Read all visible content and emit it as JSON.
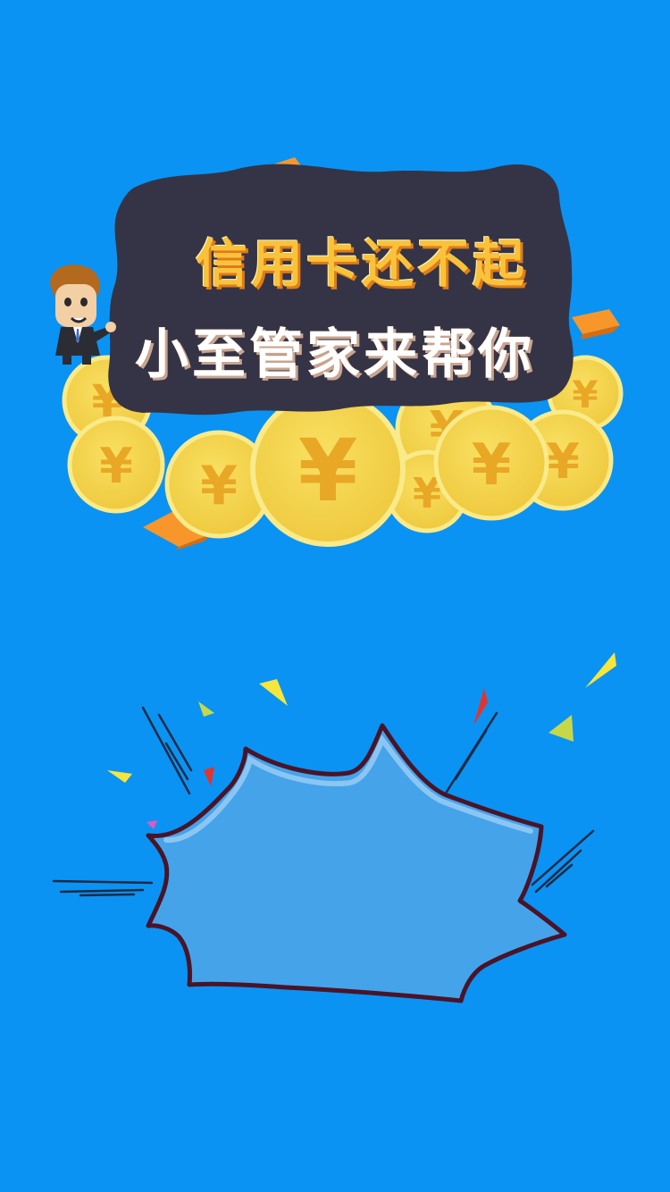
{
  "banner": {
    "line1": "信用卡还不起",
    "line2": "小至管家来帮你"
  },
  "colors": {
    "background": "#0a93f3",
    "banner_bg": "#353446",
    "coin": "#f4d34b",
    "coin_symbol": "#e9a726",
    "burst_fill": "#45a3ea",
    "burst_outline": "#4a1428"
  },
  "icons": {
    "mascot": "businessman-mascot-icon",
    "coin": "yen-coin-icon",
    "bill": "money-bill-icon",
    "burst": "comic-burst-shape"
  }
}
